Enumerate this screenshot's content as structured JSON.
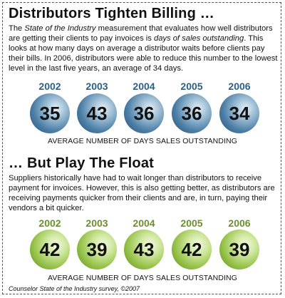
{
  "section1": {
    "title": "Distributors Tighten Billing …",
    "paragraph": {
      "p1": "The ",
      "em1": "State of the Industry",
      "p2": " measurement that evaluates how well distributors are getting their clients to pay invoices is ",
      "em2": "days of sales outstanding",
      "p3": ". This looks at how many days on average a distributor waits before clients pay their bills. In 2006, distributors were able to reduce this number to the lowest level in the last five years, an average of 34 days."
    },
    "caption": "AVERAGE NUMBER OF DAYS SALES OUTSTANDING"
  },
  "section2": {
    "title": "… But Play The Float",
    "paragraph": "Suppliers historically have had to wait longer than distributors to receive payment for invoices. However, this is also getting better, as distributors are receiving payments quicker from their clients and are, in turn, paying their vendors a bit quicker.",
    "caption": "AVERAGE NUMBER OF DAYS SALES OUTSTANDING"
  },
  "source": "Counselor State of the Industry survey, ©2007",
  "colors": {
    "year_blue": "#2a5f86",
    "year_green": "#6b8f2b",
    "ball_blue": "#4d7fa6",
    "ball_green": "#93c046"
  },
  "chart_data": [
    {
      "type": "table",
      "categories": [
        "2002",
        "2003",
        "2004",
        "2005",
        "2006"
      ],
      "values": [
        35,
        43,
        36,
        36,
        34
      ],
      "xlabel": "AVERAGE NUMBER OF DAYS SALES OUTSTANDING"
    },
    {
      "type": "table",
      "categories": [
        "2002",
        "2003",
        "2004",
        "2005",
        "2006"
      ],
      "values": [
        42,
        39,
        43,
        42,
        39
      ],
      "xlabel": "AVERAGE NUMBER OF DAYS SALES OUTSTANDING"
    }
  ]
}
